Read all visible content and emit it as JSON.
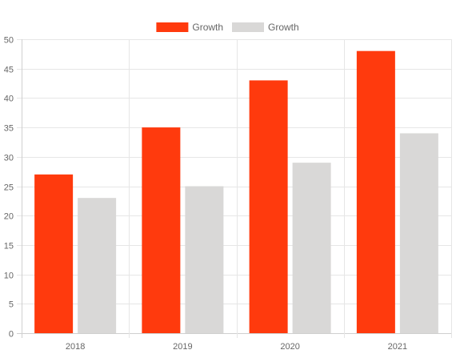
{
  "chart_data": {
    "type": "bar",
    "categories": [
      "2018",
      "2019",
      "2020",
      "2021"
    ],
    "series": [
      {
        "name": "Growth",
        "color": "#ff3a0d",
        "values": [
          27,
          35,
          43,
          48
        ]
      },
      {
        "name": "Growth",
        "color": "#d9d8d7",
        "values": [
          23,
          25,
          29,
          34
        ]
      }
    ],
    "title": "",
    "xlabel": "",
    "ylabel": "",
    "ylim": [
      0,
      50
    ],
    "yticks": [
      0,
      5,
      10,
      15,
      20,
      25,
      30,
      35,
      40,
      45,
      50
    ],
    "grid": true,
    "legend_position": "top"
  }
}
